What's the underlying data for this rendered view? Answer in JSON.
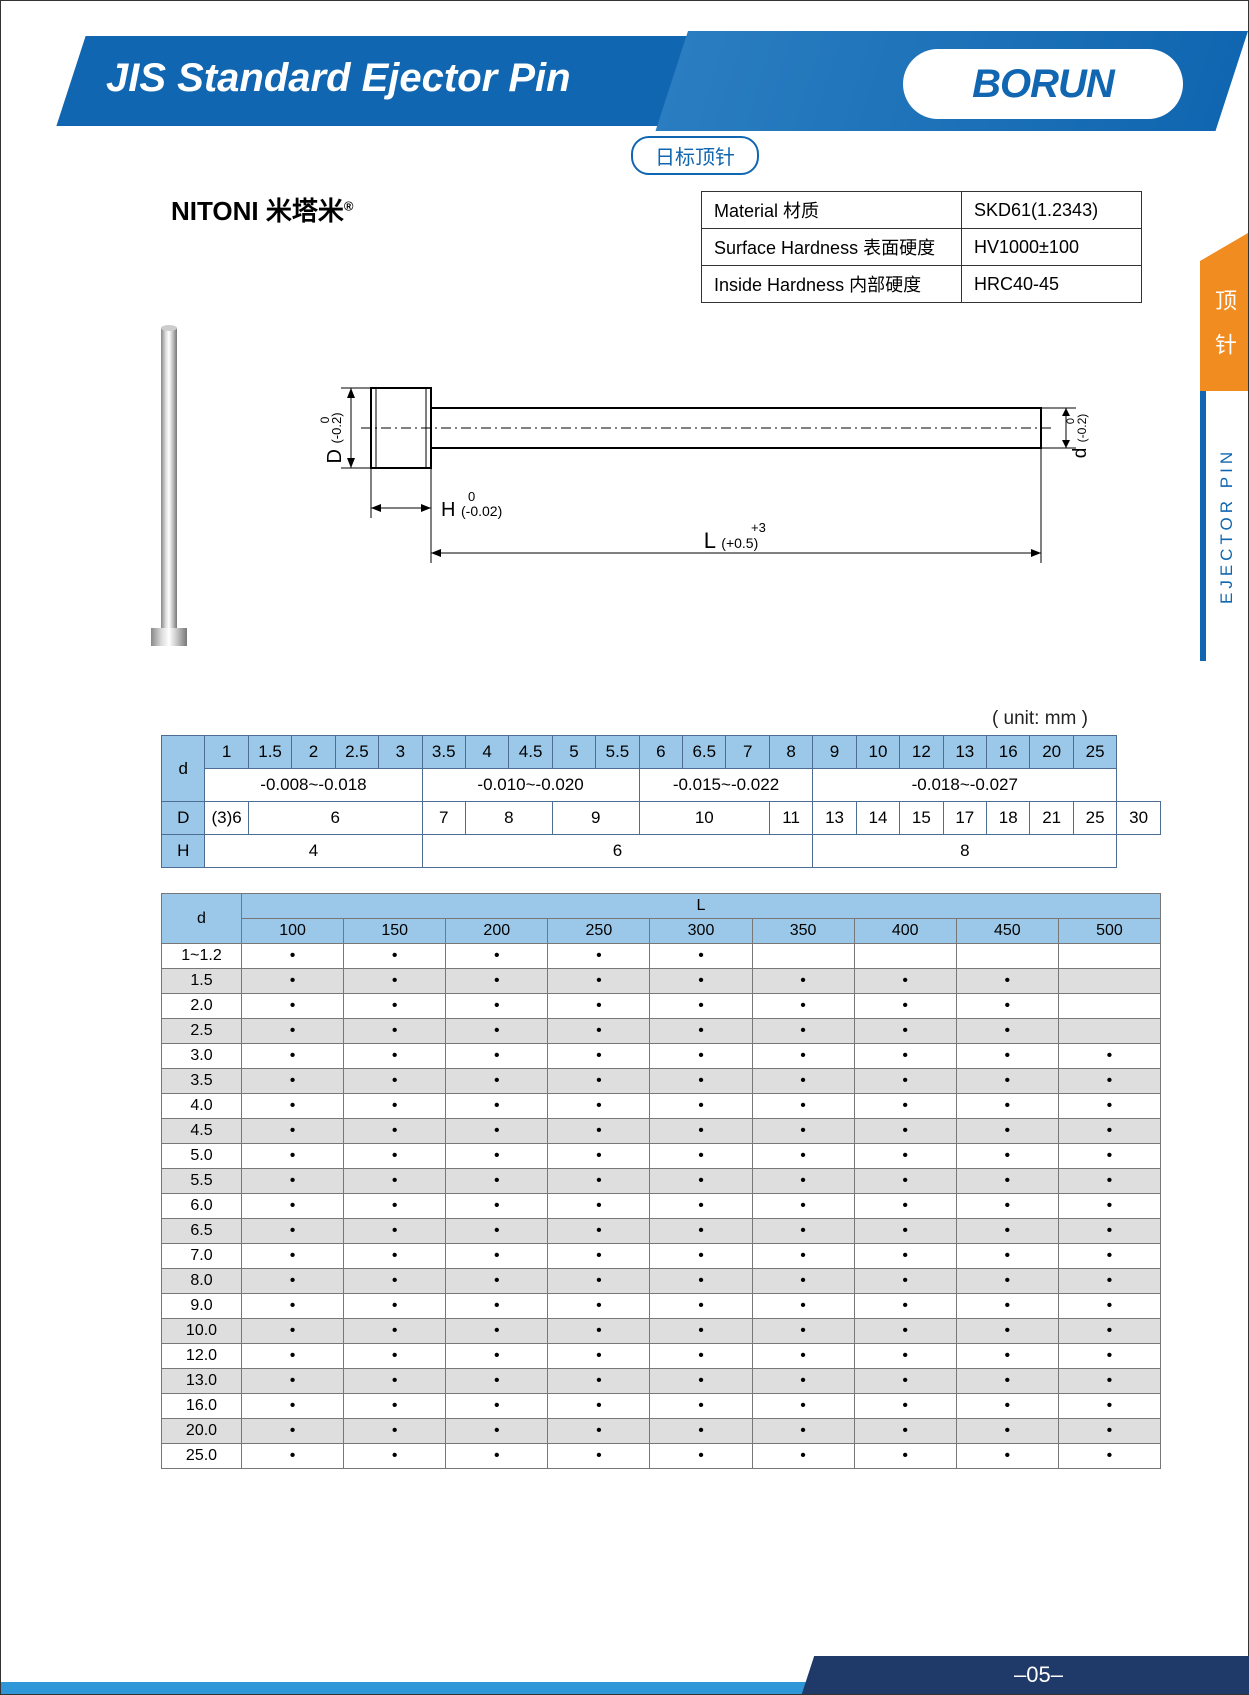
{
  "header": {
    "title": "JIS Standard Ejector Pin",
    "subtitle": "日标顶针",
    "logo": "BORUN"
  },
  "side_tab": {
    "cn": "顶 针",
    "en": "EJECTOR PIN"
  },
  "brand": "NITONI 米塔米",
  "brand_mark": "®",
  "material_table": {
    "rows": [
      [
        "Material 材质",
        "SKD61(1.2343)"
      ],
      [
        "Surface Hardness 表面硬度",
        "HV1000±100"
      ],
      [
        "Inside Hardness 内部硬度",
        "HRC40-45"
      ]
    ]
  },
  "diagram": {
    "labels": {
      "D": "D",
      "D_tol": "(-0.2)",
      "D_tol_top": "0",
      "d": "d",
      "d_tol": "(-0.2)",
      "d_tol_top": "0",
      "H": "H",
      "H_tol": "(-0.02)",
      "H_tol_top": "0",
      "L": "L",
      "L_tol": "(+0.5)",
      "L_tol_top": "+3"
    }
  },
  "unit_label": "( unit: mm )",
  "spec1": {
    "d_values": [
      "1",
      "1.5",
      "2",
      "2.5",
      "3",
      "3.5",
      "4",
      "4.5",
      "5",
      "5.5",
      "6",
      "6.5",
      "7",
      "8",
      "9",
      "10",
      "12",
      "13",
      "16",
      "20",
      "25"
    ],
    "tol_groups": [
      {
        "span": 5,
        "text": "-0.008~-0.018"
      },
      {
        "span": 5,
        "text": "-0.010~-0.020"
      },
      {
        "span": 4,
        "text": "-0.015~-0.022"
      },
      {
        "span": 7,
        "text": "-0.018~-0.027"
      }
    ],
    "D_row": [
      {
        "span": 1,
        "text": "(3)6"
      },
      {
        "span": 4,
        "text": "6"
      },
      {
        "span": 1,
        "text": "7"
      },
      {
        "span": 2,
        "text": "8"
      },
      {
        "span": 2,
        "text": "9"
      },
      {
        "span": 3,
        "text": "10"
      },
      {
        "span": 1,
        "text": "11"
      },
      {
        "span": 1,
        "text": "13"
      },
      {
        "span": 1,
        "text": "14"
      },
      {
        "span": 1,
        "text": "15"
      },
      {
        "span": 1,
        "text": "17"
      },
      {
        "span": 1,
        "text": "18"
      },
      {
        "span": 1,
        "text": "21"
      },
      {
        "span": 1,
        "text": "25"
      },
      {
        "span": 1,
        "text": "30"
      }
    ],
    "H_row": [
      {
        "span": 5,
        "text": "4"
      },
      {
        "span": 9,
        "text": "6"
      },
      {
        "span": 7,
        "text": "8"
      }
    ]
  },
  "spec2": {
    "L_values": [
      "100",
      "150",
      "200",
      "250",
      "300",
      "350",
      "400",
      "450",
      "500"
    ],
    "rows": [
      {
        "d": "1~1.2",
        "v": [
          1,
          1,
          1,
          1,
          1,
          0,
          0,
          0,
          0
        ]
      },
      {
        "d": "1.5",
        "v": [
          1,
          1,
          1,
          1,
          1,
          1,
          1,
          1,
          0
        ]
      },
      {
        "d": "2.0",
        "v": [
          1,
          1,
          1,
          1,
          1,
          1,
          1,
          1,
          0
        ]
      },
      {
        "d": "2.5",
        "v": [
          1,
          1,
          1,
          1,
          1,
          1,
          1,
          1,
          0
        ]
      },
      {
        "d": "3.0",
        "v": [
          1,
          1,
          1,
          1,
          1,
          1,
          1,
          1,
          1
        ]
      },
      {
        "d": "3.5",
        "v": [
          1,
          1,
          1,
          1,
          1,
          1,
          1,
          1,
          1
        ]
      },
      {
        "d": "4.0",
        "v": [
          1,
          1,
          1,
          1,
          1,
          1,
          1,
          1,
          1
        ]
      },
      {
        "d": "4.5",
        "v": [
          1,
          1,
          1,
          1,
          1,
          1,
          1,
          1,
          1
        ]
      },
      {
        "d": "5.0",
        "v": [
          1,
          1,
          1,
          1,
          1,
          1,
          1,
          1,
          1
        ]
      },
      {
        "d": "5.5",
        "v": [
          1,
          1,
          1,
          1,
          1,
          1,
          1,
          1,
          1
        ]
      },
      {
        "d": "6.0",
        "v": [
          1,
          1,
          1,
          1,
          1,
          1,
          1,
          1,
          1
        ]
      },
      {
        "d": "6.5",
        "v": [
          1,
          1,
          1,
          1,
          1,
          1,
          1,
          1,
          1
        ]
      },
      {
        "d": "7.0",
        "v": [
          1,
          1,
          1,
          1,
          1,
          1,
          1,
          1,
          1
        ]
      },
      {
        "d": "8.0",
        "v": [
          1,
          1,
          1,
          1,
          1,
          1,
          1,
          1,
          1
        ]
      },
      {
        "d": "9.0",
        "v": [
          1,
          1,
          1,
          1,
          1,
          1,
          1,
          1,
          1
        ]
      },
      {
        "d": "10.0",
        "v": [
          1,
          1,
          1,
          1,
          1,
          1,
          1,
          1,
          1
        ]
      },
      {
        "d": "12.0",
        "v": [
          1,
          1,
          1,
          1,
          1,
          1,
          1,
          1,
          1
        ]
      },
      {
        "d": "13.0",
        "v": [
          1,
          1,
          1,
          1,
          1,
          1,
          1,
          1,
          1
        ]
      },
      {
        "d": "16.0",
        "v": [
          1,
          1,
          1,
          1,
          1,
          1,
          1,
          1,
          1
        ]
      },
      {
        "d": "20.0",
        "v": [
          1,
          1,
          1,
          1,
          1,
          1,
          1,
          1,
          1
        ]
      },
      {
        "d": "25.0",
        "v": [
          1,
          1,
          1,
          1,
          1,
          1,
          1,
          1,
          1
        ]
      }
    ]
  },
  "footer": {
    "page": "–05–"
  },
  "colors": {
    "primary_blue": "#1066b0",
    "header_blue_light": "#9bc8e8",
    "orange": "#f18c20",
    "footer_dark": "#1f3968",
    "footer_light": "#2f96d8",
    "row_alt": "#dedede"
  }
}
